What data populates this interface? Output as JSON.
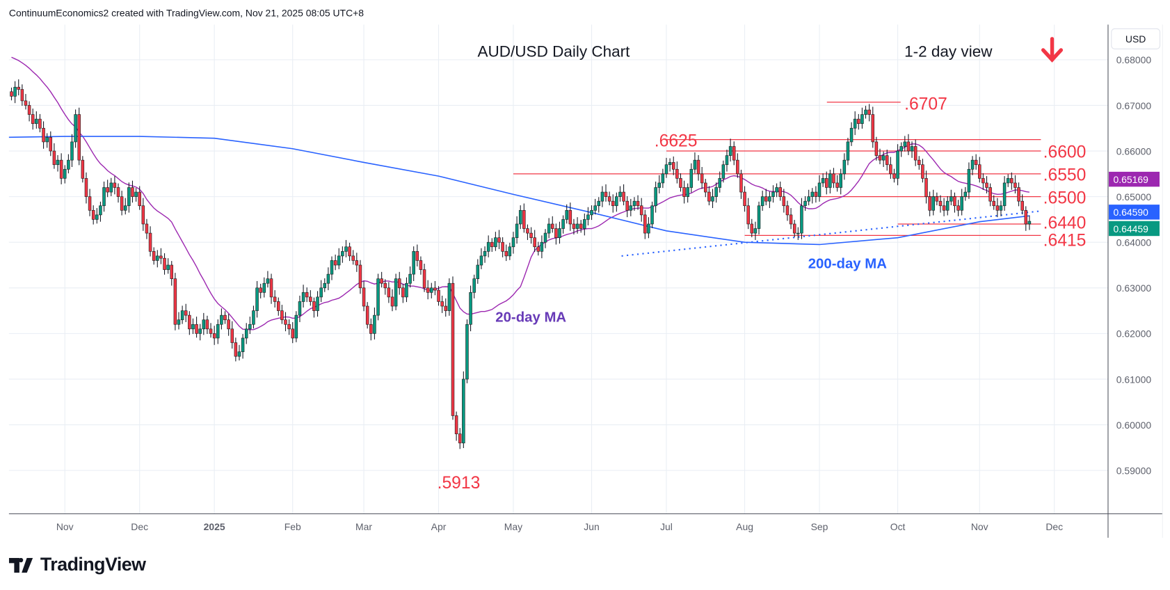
{
  "header": {
    "attribution": "ContinuumEconomics2 created with TradingView.com, Nov 21, 2025 08:05 UTC+8"
  },
  "logo": {
    "text": "TradingView"
  },
  "axis": {
    "currency_button": "USD"
  },
  "colors": {
    "up": "#089981",
    "down": "#F23645",
    "ma20": "#9C27B0",
    "ma200": "#2962FF",
    "levels": "#F23645",
    "annotation_purple": "#673AB7"
  },
  "chart_data": {
    "type": "candlestick",
    "title": "AUD/USD Daily Chart",
    "subtitle": "1-2 day view",
    "bias_arrow": "down",
    "ylim": [
      0.582,
      0.688
    ],
    "y_ticks": [
      "0.68000",
      "0.67000",
      "0.66000",
      "0.65000",
      "0.64000",
      "0.63000",
      "0.62000",
      "0.61000",
      "0.60000",
      "0.59000"
    ],
    "grid": true,
    "months": [
      {
        "label": "",
        "closes": [
          0.672,
          0.674,
          0.6735,
          0.671,
          0.67,
          0.668,
          0.666,
          0.667,
          0.665,
          0.662,
          0.663,
          0.66,
          0.657,
          0.658,
          0.654
        ]
      },
      {
        "label": "Nov",
        "closes": [
          0.656,
          0.658,
          0.662,
          0.668,
          0.658,
          0.654,
          0.65,
          0.647,
          0.645,
          0.646,
          0.648,
          0.652,
          0.651,
          0.653,
          0.652,
          0.65,
          0.647,
          0.648,
          0.652,
          0.65,
          0.651
        ]
      },
      {
        "label": "Dec",
        "closes": [
          0.648,
          0.644,
          0.642,
          0.638,
          0.636,
          0.637,
          0.6365,
          0.634,
          0.635,
          0.632,
          0.622,
          0.623,
          0.625,
          0.624,
          0.621,
          0.622,
          0.62,
          0.621,
          0.623,
          0.621,
          0.62
        ]
      },
      {
        "label": "2025",
        "bold": true,
        "closes": [
          0.619,
          0.622,
          0.624,
          0.623,
          0.621,
          0.618,
          0.615,
          0.616,
          0.619,
          0.621,
          0.622,
          0.625,
          0.63,
          0.629,
          0.631,
          0.632,
          0.628,
          0.627,
          0.625,
          0.623,
          0.622,
          0.621
        ]
      },
      {
        "label": "Feb",
        "closes": [
          0.619,
          0.624,
          0.627,
          0.629,
          0.628,
          0.627,
          0.625,
          0.628,
          0.63,
          0.631,
          0.633,
          0.636,
          0.635,
          0.637,
          0.638,
          0.639,
          0.637,
          0.636,
          0.635,
          0.63
        ]
      },
      {
        "label": "Mar",
        "closes": [
          0.626,
          0.622,
          0.62,
          0.624,
          0.632,
          0.631,
          0.63,
          0.628,
          0.626,
          0.632,
          0.63,
          0.628,
          0.631,
          0.633,
          0.638,
          0.636,
          0.634,
          0.63,
          0.629,
          0.63,
          0.6295
        ]
      },
      {
        "label": "Apr",
        "closes": [
          0.627,
          0.626,
          0.625,
          0.631,
          0.602,
          0.598,
          0.596,
          0.61,
          0.622,
          0.629,
          0.632,
          0.635,
          0.637,
          0.638,
          0.64,
          0.639,
          0.641,
          0.64,
          0.638,
          0.637,
          0.639
        ]
      },
      {
        "label": "May",
        "closes": [
          0.641,
          0.644,
          0.647,
          0.643,
          0.642,
          0.641,
          0.639,
          0.638,
          0.64,
          0.642,
          0.644,
          0.643,
          0.641,
          0.643,
          0.645,
          0.647,
          0.644,
          0.643,
          0.644,
          0.643,
          0.645,
          0.646
        ]
      },
      {
        "label": "Jun",
        "closes": [
          0.647,
          0.648,
          0.649,
          0.651,
          0.65,
          0.649,
          0.648,
          0.65,
          0.651,
          0.649,
          0.647,
          0.648,
          0.649,
          0.648,
          0.646,
          0.642,
          0.644,
          0.648,
          0.652,
          0.653,
          0.655
        ]
      },
      {
        "label": "Jul",
        "closes": [
          0.657,
          0.6575,
          0.656,
          0.654,
          0.652,
          0.65,
          0.652,
          0.656,
          0.658,
          0.655,
          0.653,
          0.651,
          0.649,
          0.65,
          0.652,
          0.654,
          0.657,
          0.659,
          0.661,
          0.658,
          0.655,
          0.651
        ]
      },
      {
        "label": "Aug",
        "closes": [
          0.648,
          0.644,
          0.642,
          0.643,
          0.648,
          0.65,
          0.649,
          0.65,
          0.651,
          0.652,
          0.65,
          0.648,
          0.646,
          0.644,
          0.642,
          0.642,
          0.648,
          0.649,
          0.65,
          0.651,
          0.65
        ]
      },
      {
        "label": "Sep",
        "closes": [
          0.653,
          0.654,
          0.652,
          0.655,
          0.653,
          0.652,
          0.655,
          0.658,
          0.662,
          0.665,
          0.667,
          0.666,
          0.668,
          0.669,
          0.668,
          0.662,
          0.659,
          0.658,
          0.659,
          0.657,
          0.655,
          0.654
        ]
      },
      {
        "label": "Oct",
        "closes": [
          0.66,
          0.661,
          0.662,
          0.66,
          0.661,
          0.658,
          0.657,
          0.654,
          0.65,
          0.647,
          0.65,
          0.649,
          0.648,
          0.647,
          0.649,
          0.65,
          0.648,
          0.647,
          0.65,
          0.651,
          0.656,
          0.658,
          0.657
        ]
      },
      {
        "label": "Nov",
        "closes": [
          0.654,
          0.653,
          0.652,
          0.649,
          0.648,
          0.647,
          0.648,
          0.653,
          0.654,
          0.653,
          0.652,
          0.649,
          0.647,
          0.644,
          0.6446
        ]
      },
      {
        "label": "Dec",
        "closes": []
      }
    ],
    "ma200_monthly": [
      0.663,
      0.6632,
      0.6632,
      0.6628,
      0.6605,
      0.6575,
      0.6545,
      0.6505,
      0.6465,
      0.6425,
      0.64,
      0.6395,
      0.641,
      0.6445,
      0.6458
    ],
    "levels": [
      {
        "label": ".6707",
        "value": 0.6707,
        "from_month": 11,
        "to_month": 12
      },
      {
        "label": ".6625",
        "value": 0.6625,
        "from_month": 9,
        "to_month": 13
      },
      {
        "label": ".6600",
        "value": 0.66,
        "from_month": 9,
        "to_month": 13
      },
      {
        "label": ".6550",
        "value": 0.655,
        "from_month": 7,
        "to_month": 13
      },
      {
        "label": ".6500",
        "value": 0.65,
        "from_month": 11,
        "to_month": 13
      },
      {
        "label": ".6440",
        "value": 0.644,
        "from_month": 12,
        "to_month": 13
      },
      {
        "label": ".6415",
        "value": 0.6415,
        "from_month": 10,
        "to_month": 13
      }
    ],
    "low_label": ".5913",
    "trendline": {
      "start_value": 0.637,
      "end_value": 0.6468,
      "style": "dotted"
    },
    "annotations": {
      "ma20": "20-day MA",
      "ma200": "200-day MA"
    },
    "price_badges": [
      {
        "label": "0.65169",
        "color": "#9C27B0"
      },
      {
        "label": "0.64590",
        "color": "#2962FF"
      },
      {
        "label": "0.64459",
        "color": "#089981"
      }
    ]
  }
}
